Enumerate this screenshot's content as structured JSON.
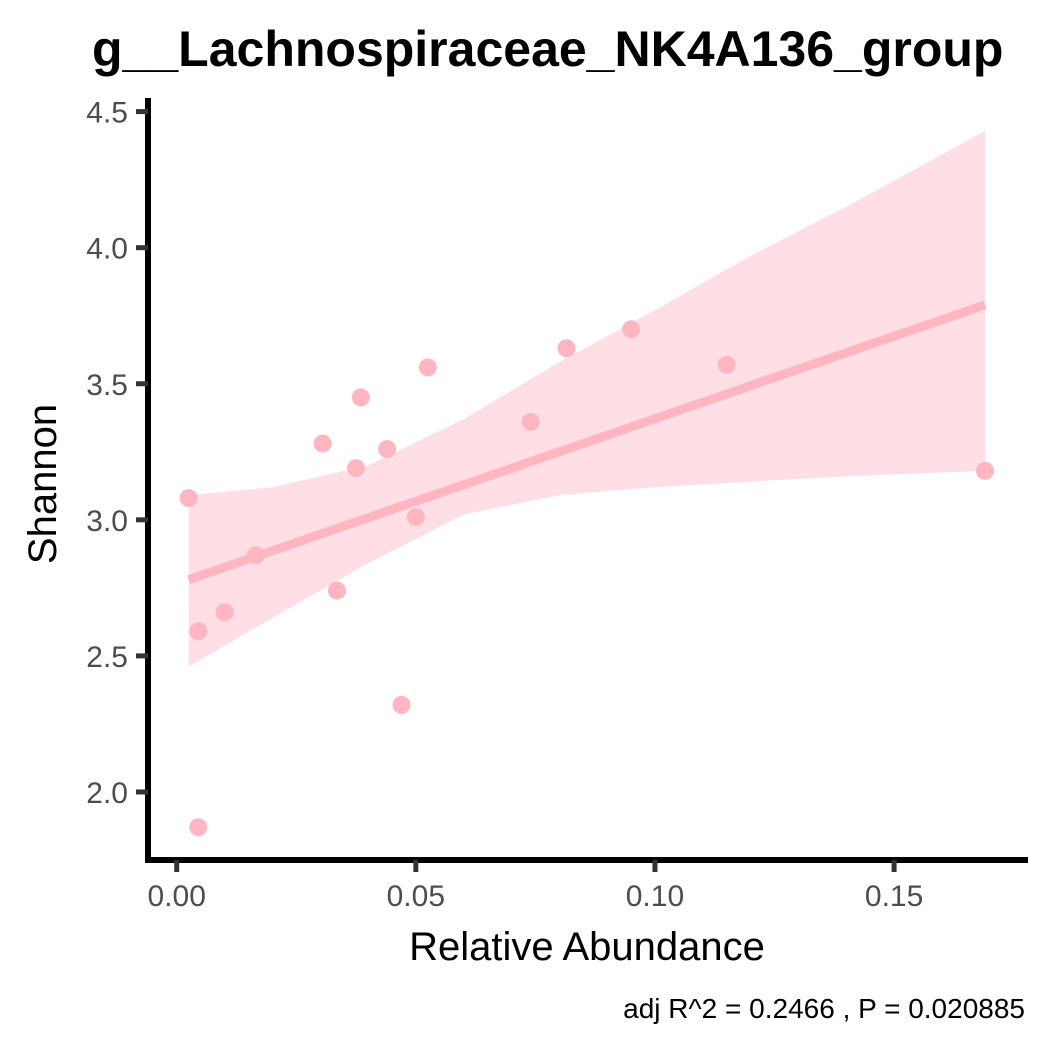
{
  "chart_data": {
    "type": "scatter",
    "title": "g__Lachnospiraceae_NK4A136_group",
    "xlabel": "Relative Abundance",
    "ylabel": "Shannon",
    "caption": "adj R^2 =  0.2466 , P = 0.020885",
    "xlim": [
      -0.006,
      0.178
    ],
    "ylim": [
      1.75,
      4.55
    ],
    "x_ticks": [
      0.0,
      0.05,
      0.1,
      0.15
    ],
    "x_tick_labels": [
      "0.00",
      "0.05",
      "0.10",
      "0.15"
    ],
    "y_ticks": [
      2.0,
      2.5,
      3.0,
      3.5,
      4.0,
      4.5
    ],
    "y_tick_labels": [
      "2.0",
      "2.5",
      "3.0",
      "3.5",
      "4.0",
      "4.5"
    ],
    "grid": false,
    "colors": {
      "points": "#ffb6c1",
      "fit_line": "#ffb6c1",
      "confidence_band": "#ffdfe5",
      "axis": "#000000"
    },
    "points": [
      {
        "x": 0.0025,
        "y": 3.08
      },
      {
        "x": 0.0045,
        "y": 2.59
      },
      {
        "x": 0.0045,
        "y": 1.87
      },
      {
        "x": 0.01,
        "y": 2.66
      },
      {
        "x": 0.0165,
        "y": 2.87
      },
      {
        "x": 0.0305,
        "y": 3.28
      },
      {
        "x": 0.0335,
        "y": 2.74
      },
      {
        "x": 0.0375,
        "y": 3.19
      },
      {
        "x": 0.0385,
        "y": 3.45
      },
      {
        "x": 0.044,
        "y": 3.26
      },
      {
        "x": 0.047,
        "y": 2.32
      },
      {
        "x": 0.05,
        "y": 3.01
      },
      {
        "x": 0.0525,
        "y": 3.56
      },
      {
        "x": 0.074,
        "y": 3.36
      },
      {
        "x": 0.0815,
        "y": 3.63
      },
      {
        "x": 0.095,
        "y": 3.7
      },
      {
        "x": 0.115,
        "y": 3.57
      },
      {
        "x": 0.169,
        "y": 3.18
      }
    ],
    "fit_line": {
      "x": [
        0.0025,
        0.169
      ],
      "y": [
        2.78,
        3.79
      ]
    },
    "confidence_band": {
      "x": [
        0.0025,
        0.02,
        0.04,
        0.06,
        0.08,
        0.1,
        0.12,
        0.14,
        0.169
      ],
      "upper": [
        3.09,
        3.12,
        3.2,
        3.37,
        3.58,
        3.77,
        3.97,
        4.15,
        4.43
      ],
      "lower": [
        2.46,
        2.64,
        2.84,
        3.02,
        3.09,
        3.12,
        3.14,
        3.16,
        3.18
      ]
    }
  }
}
